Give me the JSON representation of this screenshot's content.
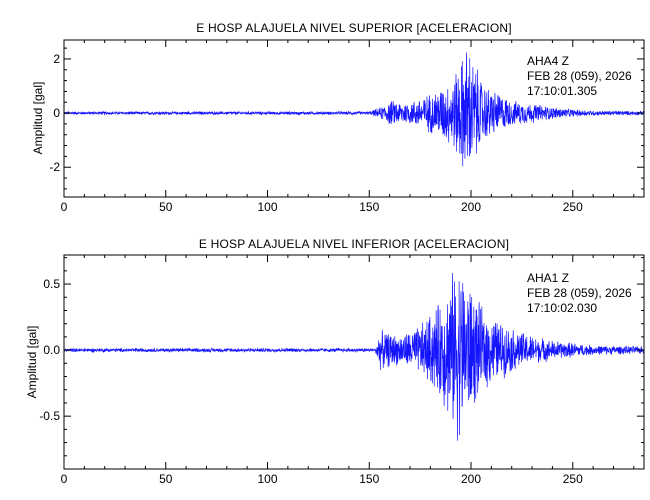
{
  "chart_data": [
    {
      "type": "line",
      "title": "E HOSP ALAJUELA NIVEL SUPERIOR [ACELERACION]",
      "ylabel": "Amplitud [gal]",
      "xlabel": "",
      "xlim": [
        0,
        285
      ],
      "ylim": [
        -3.1,
        2.7
      ],
      "xticks": [
        0,
        50,
        100,
        150,
        200,
        250
      ],
      "xtick_labels": [
        "0",
        "50",
        "100",
        "150",
        "200",
        "250"
      ],
      "yticks": [
        2,
        0,
        -2
      ],
      "ytick_labels": [
        "2",
        "0",
        "-2"
      ],
      "annotation": [
        "AHA4 Z",
        "FEB 28 (059), 2026",
        "17:10:01.305"
      ],
      "series": [
        {
          "color": "#1414ff",
          "envelope": {
            "x": [
              0,
              150,
              156,
              160,
              170,
              180,
              190,
              195,
              198,
              202,
              206,
              212,
              220,
              230,
              240,
              250,
              260,
              285
            ],
            "amp": [
              0.06,
              0.06,
              0.25,
              0.5,
              0.45,
              0.8,
              1.3,
              2.1,
              2.8,
              2.0,
              1.2,
              0.9,
              0.5,
              0.4,
              0.25,
              0.15,
              0.1,
              0.08
            ]
          }
        }
      ]
    },
    {
      "type": "line",
      "title": "E HOSP ALAJUELA NIVEL INFERIOR [ACELERACION]",
      "ylabel": "Amplitud [gal]",
      "xlabel": "",
      "xlim": [
        0,
        285
      ],
      "ylim": [
        -0.9,
        0.72
      ],
      "xticks": [
        0,
        50,
        100,
        150,
        200,
        250
      ],
      "xtick_labels": [
        "0",
        "50",
        "100",
        "150",
        "200",
        "250"
      ],
      "yticks": [
        0.5,
        0.0,
        -0.5
      ],
      "ytick_labels": [
        "0.5",
        "0.0",
        "-0.5"
      ],
      "annotation": [
        "AHA1 Z",
        "FEB 28 (059), 2026",
        "17:10:02.030"
      ],
      "series": [
        {
          "color": "#1414ff",
          "envelope": {
            "x": [
              0,
              153,
              155,
              165,
              175,
              185,
              190,
              194,
              198,
              205,
              210,
              220,
              230,
              240,
              250,
              260,
              285
            ],
            "amp": [
              0.015,
              0.015,
              0.16,
              0.12,
              0.2,
              0.4,
              0.6,
              0.75,
              0.6,
              0.35,
              0.28,
              0.18,
              0.12,
              0.08,
              0.06,
              0.04,
              0.03
            ]
          }
        }
      ]
    }
  ]
}
